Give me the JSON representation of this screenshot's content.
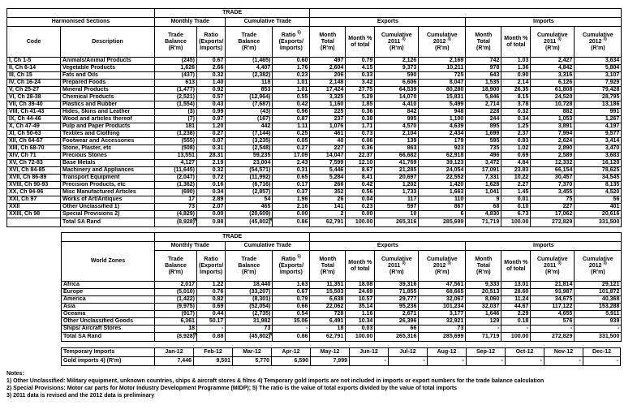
{
  "colors": {
    "comment_marker_green": "#008000",
    "border_black": "#000000"
  },
  "harmonised_table": {
    "trade_title": "TRADE",
    "bands": {
      "left": "Harmonised Sections",
      "monthly": "Monthly Trade",
      "cumulative": "Cumulative Trade",
      "exports": "Exports",
      "imports": "Imports"
    },
    "col_headers": {
      "code": "Code",
      "description": "Description",
      "numeric": [
        "Trade\nBalance\n(R'm)",
        "Ratio\n(Exports/\nImports)",
        "Trade\nBalance\n(R'm)",
        "Ratio 5)\n(Exports/\nImports)",
        "Month\nTotal\n(R'm)",
        "Month %\nof total",
        "Cumulative\n2011 3)\n(R'm)",
        "Cumulative\n2012 3)\n(R'm)",
        "Month\nTotal\n(R'm)",
        "Month %\nof total",
        "Cumulative\n2011 3)\n(R'm)",
        "Cumulative\n2012 3)\n(R'm)"
      ]
    },
    "rows": [
      {
        "code": "I, Ch 1-5",
        "description": "Animals/Animal Products",
        "values": [
          "(245)",
          "0.67",
          "(1,465)",
          "0.60",
          "497",
          "0.79",
          "2,126",
          "2,169",
          "742",
          "1.03",
          "2,427",
          "3,634"
        ]
      },
      {
        "code": "II, Ch 6-14",
        "description": "Vegetable Products",
        "values": [
          "1,626",
          "2.66",
          "4,407",
          "1.76",
          "2,604",
          "4.15",
          "9,373",
          "10,211",
          "978",
          "1.36",
          "4,842",
          "5,804"
        ]
      },
      {
        "code": "III, Ch 15",
        "description": "Fats and Oils",
        "values": [
          "(437)",
          "0.32",
          "(2,382)",
          "0.23",
          "206",
          "0.33",
          "590",
          "725",
          "643",
          "0.90",
          "3,316",
          "3,107"
        ]
      },
      {
        "code": "IV, Ch 16-24",
        "description": "Prepared Foods",
        "values": [
          "613",
          "1.40",
          "118",
          "1.01",
          "2,148",
          "3.42",
          "6,606",
          "8,047",
          "1,535",
          "2.14",
          "6,126",
          "7,929"
        ]
      },
      {
        "code": "V, Ch 25-27",
        "description": "Mineral Products",
        "values": [
          "(1,477)",
          "0.92",
          "853",
          "1.01",
          "17,424",
          "27.75",
          "64,539",
          "80,280",
          "18,900",
          "26.35",
          "61,808",
          "79,428"
        ]
      },
      {
        "code": "VI, Ch 28-38",
        "description": "Chemical Products",
        "values": [
          "(2,521)",
          "0.57",
          "(12,964)",
          "0.55",
          "3,325",
          "5.29",
          "14,070",
          "15,831",
          "5,846",
          "8.15",
          "24,520",
          "28,795"
        ]
      },
      {
        "code": "VII, Ch 39-40",
        "description": "Plastics and Rubber",
        "values": [
          "(1,554)",
          "0.43",
          "(7,687)",
          "0.42",
          "1,160",
          "1.85",
          "4,410",
          "5,499",
          "2,714",
          "3.78",
          "10,728",
          "13,186"
        ]
      },
      {
        "code": "VIII, Ch 41-43",
        "description": "Hides, Skins and Leather",
        "values": [
          "(3)",
          "0.99",
          "(43)",
          "0.96",
          "225",
          "0.36",
          "842",
          "948",
          "228",
          "0.32",
          "882",
          "991"
        ]
      },
      {
        "code": "IX, Ch 44-46",
        "description": "Wood and articles thereof",
        "values": [
          "(7)",
          "0.97",
          "(167)",
          "0.87",
          "237",
          "0.38",
          "995",
          "1,100",
          "244",
          "0.34",
          "1,053",
          "1,267"
        ]
      },
      {
        "code": "X, Ch 47-49",
        "description": "Pulp and Paper Products",
        "values": [
          "181",
          "1.20",
          "442",
          "1.11",
          "1,076",
          "1.71",
          "4,570",
          "4,639",
          "895",
          "1.25",
          "3,891",
          "4,197"
        ]
      },
      {
        "code": "XI, Ch 50-63",
        "description": "Textiles and Clothing",
        "values": [
          "(1,238)",
          "0.27",
          "(7,144)",
          "0.25",
          "461",
          "0.73",
          "2,104",
          "2,434",
          "1,699",
          "2.37",
          "7,994",
          "9,577"
        ]
      },
      {
        "code": "XII, Ch 64-67",
        "description": "Footwear and Accessories",
        "values": [
          "(555)",
          "0.07",
          "(3,235)",
          "0.05",
          "40",
          "0.06",
          "139",
          "179",
          "595",
          "0.83",
          "2,624",
          "3,414"
        ]
      },
      {
        "code": "XIII, Ch 68-70",
        "description": "Stone, Plaster, etc",
        "values": [
          "(508)",
          "0.31",
          "(2,548)",
          "0.27",
          "227",
          "0.36",
          "863",
          "923",
          "735",
          "1.02",
          "2,890",
          "3,470"
        ]
      },
      {
        "code": "XIV, Ch 71",
        "description": "Precious Stones",
        "values": [
          "13,551",
          "28.31",
          "59,235",
          "17.09",
          "14,047",
          "22.37",
          "66,682",
          "62,918",
          "496",
          "0.69",
          "2,589",
          "3,683"
        ]
      },
      {
        "code": "XV, Ch 72-83",
        "description": "Base Metals",
        "values": [
          "4,127",
          "2.19",
          "23,004",
          "2.43",
          "7,599",
          "12.10",
          "41,769",
          "39,123",
          "3,472",
          "4.84",
          "12,332",
          "16,120"
        ]
      },
      {
        "code": "XVI, Ch 84-85",
        "description": "Machinery and Appliances",
        "values": [
          "(11,645)",
          "0.32",
          "(54,571)",
          "0.31",
          "5,446",
          "8.67",
          "21,285",
          "24,054",
          "17,091",
          "23.83",
          "66,154",
          "78,625"
        ]
      },
      {
        "code": "XVII, Ch 86-89",
        "description": "Transport Equipment",
        "values": [
          "(2,047)",
          "0.72",
          "(11,992)",
          "0.65",
          "5,284",
          "8.41",
          "20,697",
          "22,552",
          "7,331",
          "10.22",
          "30,457",
          "34,545"
        ]
      },
      {
        "code": "XVIII, Ch 90-93",
        "description": "Precision Products, etc",
        "values": [
          "(1,362)",
          "0.16",
          "(6,716)",
          "0.17",
          "266",
          "0.42",
          "1,202",
          "1,420",
          "1,628",
          "2.27",
          "7,370",
          "8,135"
        ]
      },
      {
        "code": "XX, Ch 94-96",
        "description": "Misc Manufactured Articles",
        "values": [
          "(690)",
          "0.34",
          "(2,857)",
          "0.37",
          "352",
          "0.56",
          "1,733",
          "1,663",
          "1,041",
          "1.45",
          "3,455",
          "4,520"
        ]
      },
      {
        "code": "XXI, Ch 97",
        "description": "Works of Art/Antiques",
        "values": [
          "17",
          "2.89",
          "54",
          "1.96",
          "26",
          "0.04",
          "117",
          "110",
          "9",
          "0.01",
          "75",
          "56"
        ]
      },
      {
        "code": "XXII",
        "description": "Other Unclassified 1)",
        "values": [
          "73",
          "2.07",
          "465",
          "2.16",
          "141",
          "0.23",
          "597",
          "867",
          "68",
          "0.10",
          "227",
          "401"
        ]
      },
      {
        "code": "XXIII, Ch 98",
        "description": "Special Provisions 2)",
        "values": [
          "(4,829)",
          "0.00",
          "(20,609)",
          "0.00",
          "2",
          "0.00",
          "10",
          "6",
          "4,830",
          "6.73",
          "17,062",
          "20,616"
        ]
      }
    ],
    "total": {
      "label": "Total SA Rand",
      "values": [
        "(8,928)",
        "0.88",
        "(45,802)",
        "0.86",
        "62,791",
        "100.00",
        "265,316",
        "285,699",
        "71,719",
        "100.00",
        "272,829",
        "331,500"
      ]
    }
  },
  "zones_table": {
    "trade_title": "TRADE",
    "label_header": "World Zones",
    "bands": {
      "monthly": "Monthly Trade",
      "cumulative": "Cumulative Trade",
      "exports": "Exports",
      "imports": "Imports"
    },
    "rows": [
      {
        "label": "Africa",
        "values": [
          "2,017",
          "1.22",
          "18,440",
          "1.63",
          "11,351",
          "18.08",
          "39,316",
          "47,561",
          "9,333",
          "13.01",
          "21,814",
          "29,121"
        ]
      },
      {
        "label": "Europe",
        "values": [
          "(5,010)",
          "0.76",
          "(33,207)",
          "0.67",
          "15,503",
          "24.69",
          "71,855",
          "68,665",
          "20,513",
          "28.60",
          "93,987",
          "101,872"
        ]
      },
      {
        "label": "America",
        "values": [
          "(1,422)",
          "0.82",
          "(8,301)",
          "0.79",
          "6,638",
          "10.57",
          "29,777",
          "32,067",
          "8,060",
          "11.24",
          "34,675",
          "40,368"
        ]
      },
      {
        "label": "Asia",
        "values": [
          "(9,975)",
          "0.69",
          "(52,054)",
          "0.66",
          "22,062",
          "35.14",
          "95,236",
          "101,234",
          "32,037",
          "44.67",
          "117,122",
          "153,288"
        ]
      },
      {
        "label": "Oceania",
        "values": [
          "(917)",
          "0.44",
          "(2,735)",
          "0.54",
          "728",
          "1.16",
          "2,671",
          "3,177",
          "1,646",
          "2.29",
          "4,655",
          "5,911"
        ]
      },
      {
        "label": "Other Unclassified Goods",
        "values": [
          "6,361",
          "50.17",
          "31,982",
          "35.06",
          "6,491",
          "10.34",
          "26,396",
          "32,921",
          "129",
          "0.18",
          "576",
          "939"
        ]
      },
      {
        "label": "Ships/ Aircraft Stores",
        "values": [
          "18",
          "-",
          "73",
          "-",
          "18",
          "0.03",
          "66",
          "73",
          "-",
          "-",
          "-",
          "-"
        ]
      }
    ],
    "total": {
      "label": "Total SA Rand",
      "values": [
        "(8,928)",
        "0.88",
        "(45,802)",
        "0.86",
        "62,791",
        "100.00",
        "265,316",
        "285,699",
        "71,719",
        "100.00",
        "272,829",
        "331,500"
      ]
    }
  },
  "temporary_imports_table": {
    "title": "Temporary Imports",
    "row_label": "Gold imports 4) (R'm)",
    "months": [
      "Jan-12",
      "Feb-12",
      "Mar-12",
      "Apr-12",
      "May-12",
      "Jun-12",
      "Jul-12",
      "Aug-12",
      "Sep-12",
      "Oct-12",
      "Nov-12",
      "Dec-12"
    ],
    "values": [
      "7,446",
      "9,501",
      "5,770",
      "6,590",
      "7,999",
      "-",
      "-",
      "-",
      "-",
      "-",
      "-",
      "-"
    ]
  },
  "notes": {
    "title": "Notes:",
    "lines": [
      "1) Other Unclassified: Military equipment, unknown countries, ships & aircraft stores & films 4) Temporary gold imports are not included in imports or export numbers for the trade balance calculation",
      "2) Special Provisions: Motor car parts for Motor Industry Development Programme (MIDP); 5) The ratio is the value of total exports divided by the value of total imports",
      "3) 2011 data is revised and the 2012 data is preliminary"
    ]
  }
}
